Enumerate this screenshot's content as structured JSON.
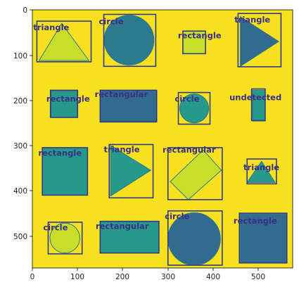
{
  "axes": {
    "x_ticks": [
      "0",
      "100",
      "200",
      "300",
      "400",
      "500"
    ],
    "y_ticks": [
      "0",
      "100",
      "200",
      "300",
      "400",
      "500"
    ]
  },
  "colors": {
    "background": "#f7e01e",
    "box": "#2e3a8c",
    "teal": "#26998b",
    "teal_dark": "#2c7a8e",
    "blue_teal": "#336b8e",
    "lime": "#c8de28",
    "label": "#3b2f86"
  },
  "shapes": [
    {
      "label": "triangle",
      "type": "triangle-up",
      "fill": "lime"
    },
    {
      "label": "circle",
      "type": "circle",
      "fill": "teal_dark"
    },
    {
      "label": "rectangle",
      "type": "rect",
      "fill": "lime"
    },
    {
      "label": "triangle",
      "type": "triangle-right",
      "fill": "blue_teal"
    },
    {
      "label": "rectangle",
      "type": "rect",
      "fill": "teal"
    },
    {
      "label": "rectangular",
      "type": "rect",
      "fill": "blue_teal"
    },
    {
      "label": "circle",
      "type": "circle",
      "fill": "teal"
    },
    {
      "label": "undetected",
      "type": "rect",
      "fill": "teal"
    },
    {
      "label": "rectangle",
      "type": "rect",
      "fill": "teal"
    },
    {
      "label": "triangle",
      "type": "triangle-right",
      "fill": "teal"
    },
    {
      "label": "rectangular",
      "type": "diamond",
      "fill": "lime"
    },
    {
      "label": "triangle",
      "type": "triangle-up",
      "fill": "teal"
    },
    {
      "label": "circle",
      "type": "circle",
      "fill": "lime"
    },
    {
      "label": "rectangular",
      "type": "rect",
      "fill": "teal"
    },
    {
      "label": "circle",
      "type": "circle",
      "fill": "blue_teal"
    },
    {
      "label": "rectangle",
      "type": "rect",
      "fill": "blue_teal"
    }
  ]
}
